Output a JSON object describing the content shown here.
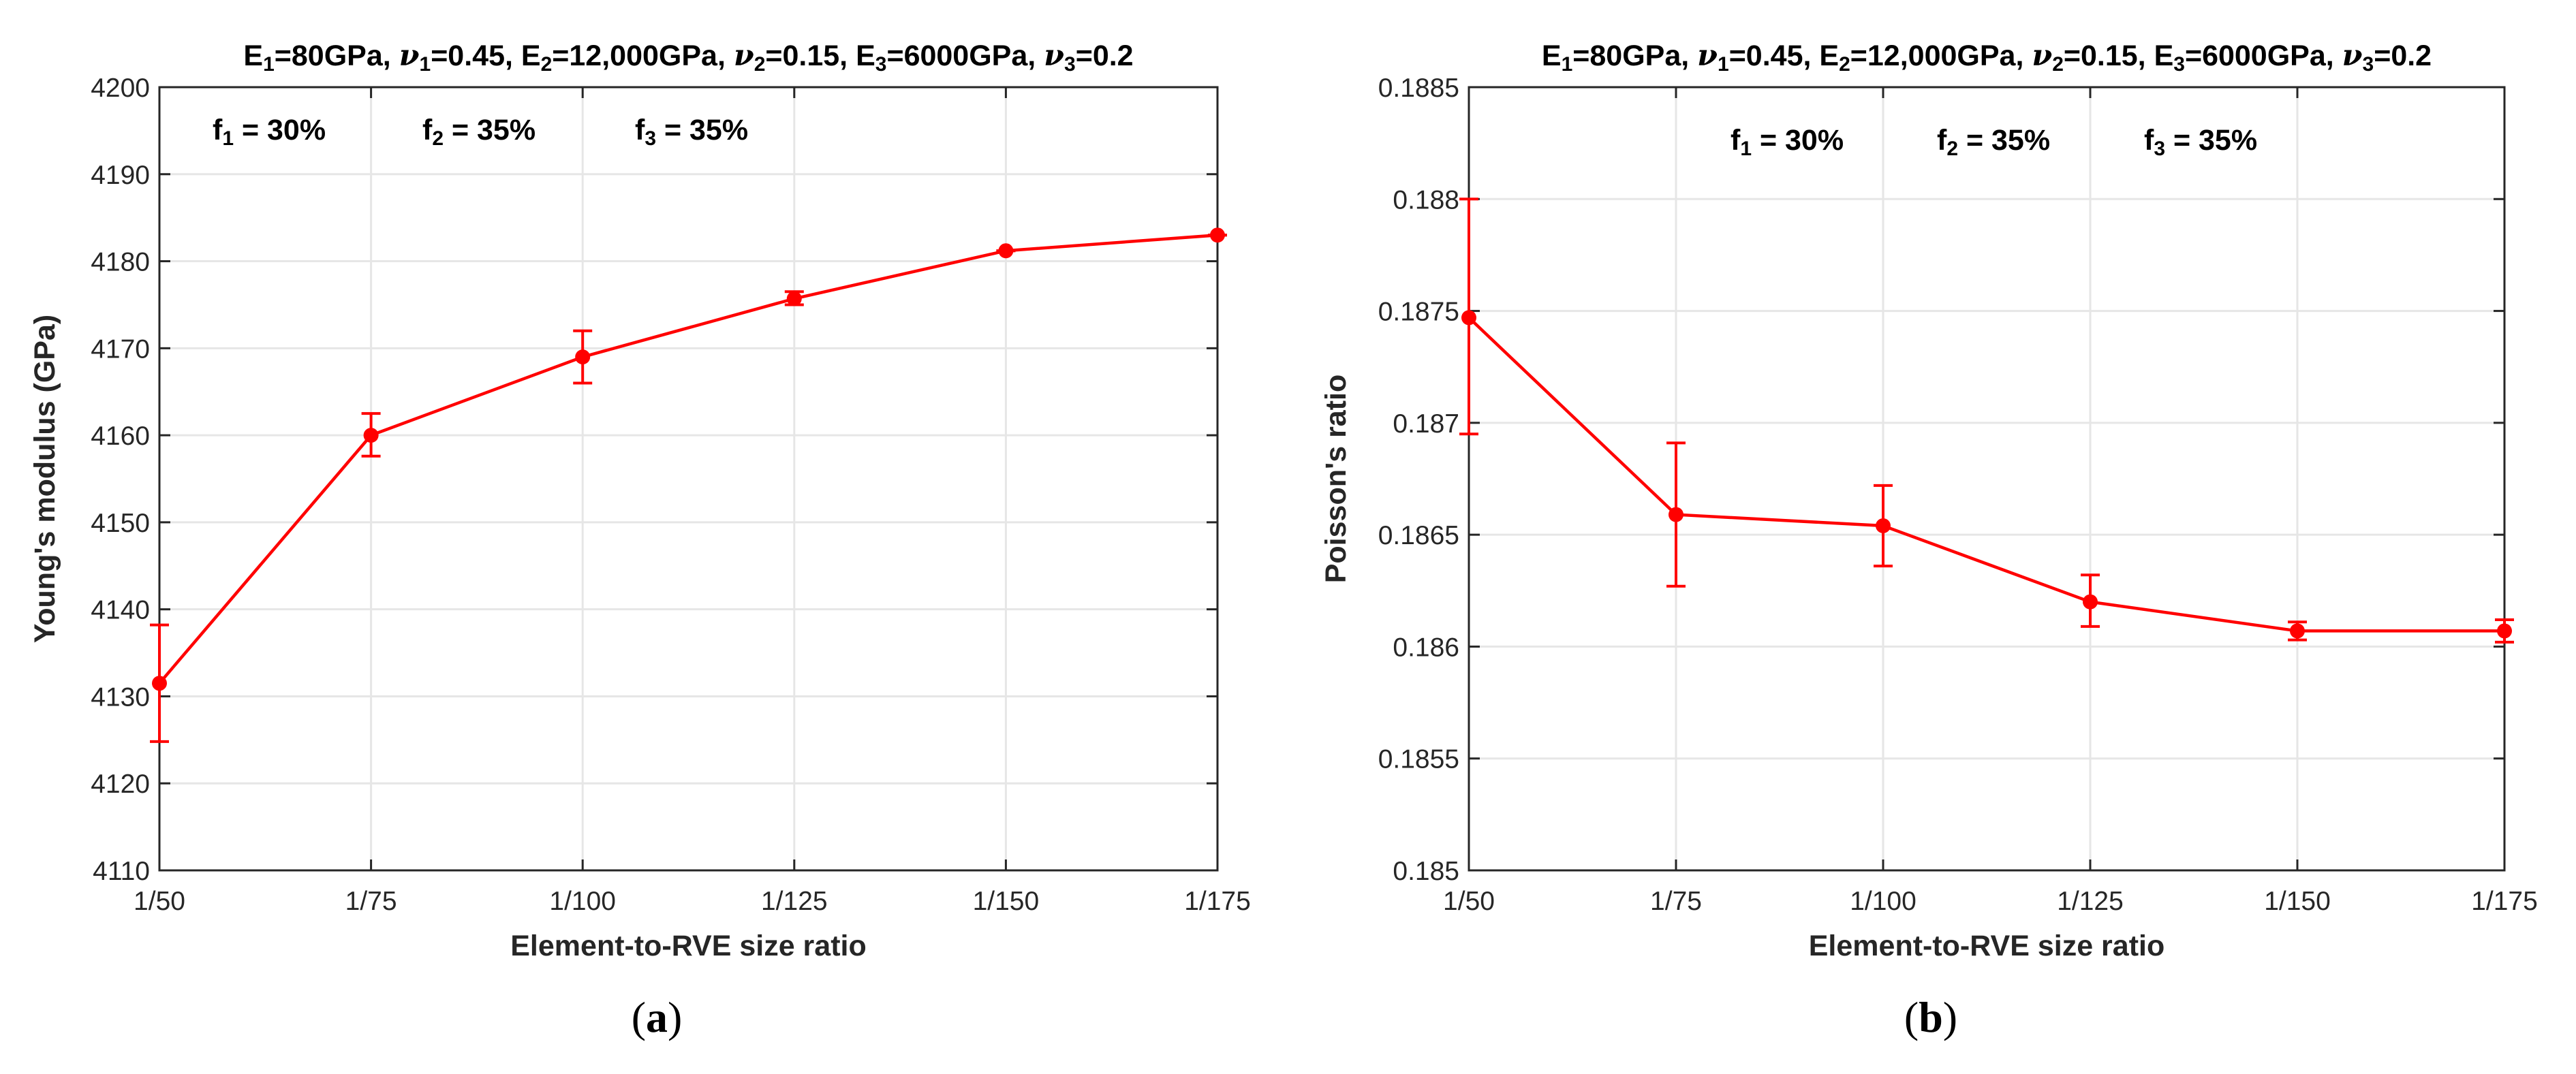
{
  "chart_data": [
    {
      "id": "a",
      "type": "line",
      "title": "E1=80GPa, ν1=0.45,  E2=12,000GPa, ν2=0.15,  E3=6000GPa, ν3=0.2",
      "title_parts": [
        {
          "t": "E",
          "s": false
        },
        {
          "t": "1",
          "s": true
        },
        {
          "t": "=80GPa, ",
          "s": false
        },
        {
          "t": "ν",
          "s": false,
          "i": true
        },
        {
          "t": "1",
          "s": true
        },
        {
          "t": "=0.45,  E",
          "s": false
        },
        {
          "t": "2",
          "s": true
        },
        {
          "t": "=12,000GPa, ",
          "s": false
        },
        {
          "t": "ν",
          "s": false,
          "i": true
        },
        {
          "t": "2",
          "s": true
        },
        {
          "t": "=0.15,  E",
          "s": false
        },
        {
          "t": "3",
          "s": true
        },
        {
          "t": "=6000GPa, ",
          "s": false
        },
        {
          "t": "ν",
          "s": false,
          "i": true
        },
        {
          "t": "3",
          "s": true
        },
        {
          "t": "=0.2",
          "s": false
        }
      ],
      "xlabel": "Element-to-RVE size ratio",
      "ylabel": "Young's modulus (GPa)",
      "categories": [
        "1/50",
        "1/75",
        "1/100",
        "1/125",
        "1/150",
        "1/175"
      ],
      "ylim": [
        4110,
        4200
      ],
      "yticks": [
        4110,
        4120,
        4130,
        4140,
        4150,
        4160,
        4170,
        4180,
        4190,
        4200
      ],
      "ytick_labels": [
        "4110",
        "4120",
        "4130",
        "4140",
        "4150",
        "4160",
        "4170",
        "4180",
        "4190",
        "4200"
      ],
      "grid": true,
      "series": [
        {
          "name": "Young's modulus",
          "color": "#ff0000",
          "values": [
            4131.5,
            4160,
            4169,
            4175.7,
            4181.2,
            4183
          ],
          "err_low": [
            4124.8,
            4157.6,
            4166,
            4175,
            4181.2,
            4183
          ],
          "err_high": [
            4138.2,
            4162.5,
            4172,
            4176.5,
            4181.2,
            4183
          ]
        }
      ],
      "annotations": [
        {
          "name": "f1",
          "parts": [
            {
              "t": "f",
              "s": false
            },
            {
              "t": "1",
              "s": true
            },
            {
              "t": " = 30%",
              "s": false
            }
          ]
        },
        {
          "name": "f2",
          "parts": [
            {
              "t": "f",
              "s": false
            },
            {
              "t": "2",
              "s": true
            },
            {
              "t": " = 35%",
              "s": false
            }
          ]
        },
        {
          "name": "f3",
          "parts": [
            {
              "t": "f",
              "s": false
            },
            {
              "t": "3",
              "s": true
            },
            {
              "t": " = 35%",
              "s": false
            }
          ]
        }
      ],
      "caption": "(a)",
      "caption_letter": "a"
    },
    {
      "id": "b",
      "type": "line",
      "title": "E1=80GPa, ν1=0.45,  E2=12,000GPa, ν2=0.15,  E3=6000GPa, ν3=0.2",
      "title_parts": [
        {
          "t": "E",
          "s": false
        },
        {
          "t": "1",
          "s": true
        },
        {
          "t": "=80GPa, ",
          "s": false
        },
        {
          "t": "ν",
          "s": false,
          "i": true
        },
        {
          "t": "1",
          "s": true
        },
        {
          "t": "=0.45,  E",
          "s": false
        },
        {
          "t": "2",
          "s": true
        },
        {
          "t": "=12,000GPa, ",
          "s": false
        },
        {
          "t": "ν",
          "s": false,
          "i": true
        },
        {
          "t": "2",
          "s": true
        },
        {
          "t": "=0.15,  E",
          "s": false
        },
        {
          "t": "3",
          "s": true
        },
        {
          "t": "=6000GPa, ",
          "s": false
        },
        {
          "t": "ν",
          "s": false,
          "i": true
        },
        {
          "t": "3",
          "s": true
        },
        {
          "t": "=0.2",
          "s": false
        }
      ],
      "xlabel": "Element-to-RVE size ratio",
      "ylabel": "Poisson's ratio",
      "categories": [
        "1/50",
        "1/75",
        "1/100",
        "1/125",
        "1/150",
        "1/175"
      ],
      "ylim": [
        0.185,
        0.1885
      ],
      "yticks": [
        0.185,
        0.1855,
        0.186,
        0.1865,
        0.187,
        0.1875,
        0.188,
        0.1885
      ],
      "ytick_labels": [
        "0.185",
        "0.1855",
        "0.186",
        "0.1865",
        "0.187",
        "0.1875",
        "0.188",
        "0.1885"
      ],
      "grid": true,
      "series": [
        {
          "name": "Poisson's ratio",
          "color": "#ff0000",
          "values": [
            0.18747,
            0.18659,
            0.18654,
            0.1862,
            0.18607,
            0.18607
          ],
          "err_low": [
            0.18695,
            0.18627,
            0.18636,
            0.18609,
            0.18603,
            0.18602
          ],
          "err_high": [
            0.188,
            0.18691,
            0.18672,
            0.18632,
            0.18611,
            0.18612
          ]
        }
      ],
      "annotations": [
        {
          "name": "f1",
          "parts": [
            {
              "t": "f",
              "s": false
            },
            {
              "t": "1",
              "s": true
            },
            {
              "t": " = 30%",
              "s": false
            }
          ]
        },
        {
          "name": "f2",
          "parts": [
            {
              "t": "f",
              "s": false
            },
            {
              "t": "2",
              "s": true
            },
            {
              "t": " = 35%",
              "s": false
            }
          ]
        },
        {
          "name": "f3",
          "parts": [
            {
              "t": "f",
              "s": false
            },
            {
              "t": "3",
              "s": true
            },
            {
              "t": " = 35%",
              "s": false
            }
          ]
        }
      ],
      "caption": "(b)",
      "caption_letter": "b"
    }
  ]
}
